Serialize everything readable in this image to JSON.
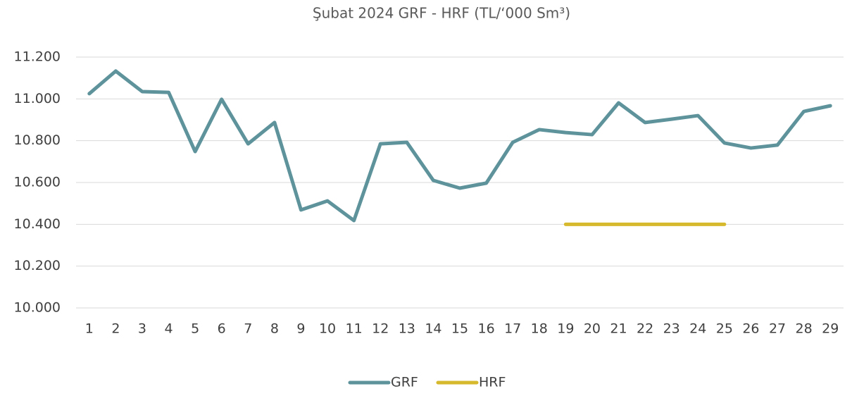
{
  "chart_data": {
    "type": "line",
    "title": "Şubat 2024 GRF - HRF (TL/‘000 Sm³)",
    "categories": [
      "1",
      "2",
      "3",
      "4",
      "5",
      "6",
      "7",
      "8",
      "9",
      "10",
      "11",
      "12",
      "13",
      "14",
      "15",
      "16",
      "17",
      "18",
      "19",
      "20",
      "21",
      "22",
      "23",
      "24",
      "25",
      "26",
      "27",
      "28",
      "29"
    ],
    "series": [
      {
        "name": "GRF",
        "color": "#5e939c",
        "values": [
          11025,
          11133,
          11035,
          11031,
          10748,
          10998,
          10785,
          10887,
          10469,
          10512,
          10418,
          10785,
          10792,
          10610,
          10573,
          10597,
          10792,
          10853,
          10839,
          10829,
          10981,
          10887,
          10903,
          10920,
          10789,
          10765,
          10779,
          10940,
          10967
        ]
      },
      {
        "name": "HRF",
        "color": "#d6b92c",
        "values": [
          null,
          null,
          null,
          null,
          null,
          null,
          null,
          null,
          null,
          null,
          null,
          null,
          null,
          null,
          null,
          null,
          null,
          null,
          10400,
          10400,
          10400,
          10400,
          10400,
          10400,
          10400,
          null,
          null,
          null,
          null
        ]
      }
    ],
    "ylim": [
      10000,
      11200
    ],
    "yticks": [
      {
        "value": 10000,
        "label": "10.000"
      },
      {
        "value": 10200,
        "label": "10.200"
      },
      {
        "value": 10400,
        "label": "10.400"
      },
      {
        "value": 10600,
        "label": "10.600"
      },
      {
        "value": 10800,
        "label": "10.800"
      },
      {
        "value": 11000,
        "label": "11.000"
      },
      {
        "value": 11200,
        "label": "11.200"
      }
    ],
    "grid": true,
    "legend": "bottom"
  }
}
